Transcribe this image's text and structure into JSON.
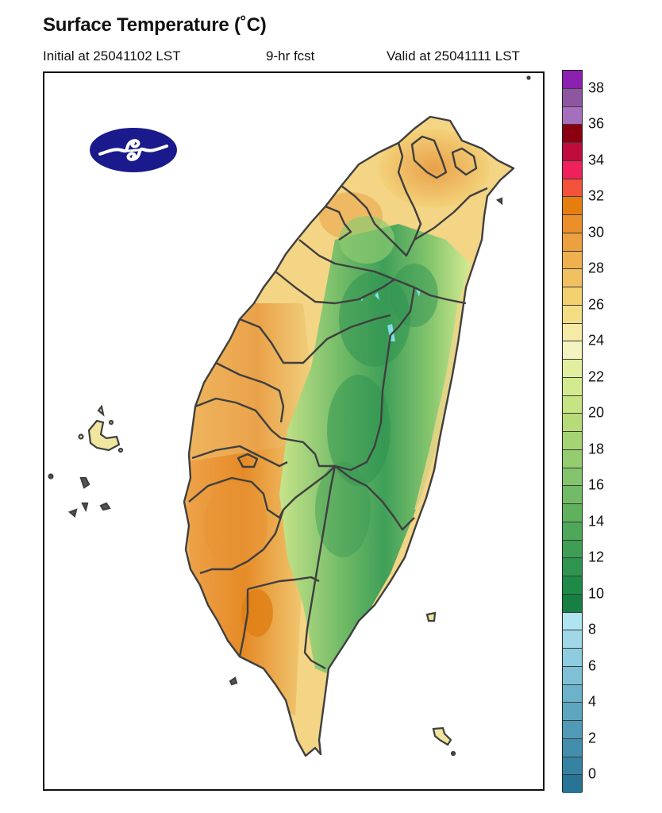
{
  "header": {
    "title": "Surface Temperature (˚C)",
    "initial": "Initial at 25041102 LST",
    "forecast": "9-hr fcst",
    "valid": "Valid at 25041111 LST"
  },
  "logo": {
    "icon": "cwa-logo-icon",
    "fill": "#1a1a8c"
  },
  "colorbar": {
    "unit": "˚C",
    "labels": [
      "38",
      "36",
      "34",
      "32",
      "30",
      "28",
      "26",
      "24",
      "22",
      "20",
      "18",
      "16",
      "14",
      "12",
      "10",
      "8",
      "6",
      "4",
      "2",
      "0"
    ],
    "boxes_top_to_bottom": [
      "#8a1fb0",
      "#8e55a0",
      "#a66fbe",
      "#8b0010",
      "#c00c3c",
      "#f0205a",
      "#f2533a",
      "#e67e0e",
      "#ea8f2a",
      "#eca040",
      "#efb050",
      "#f1c060",
      "#f3d070",
      "#f3de84",
      "#f6eba6",
      "#f3f4c0",
      "#e1ef9e",
      "#d3ea8e",
      "#c6e482",
      "#b6dc78",
      "#a6d474",
      "#94cc70",
      "#84c46c",
      "#72bb66",
      "#60b15e",
      "#4ea85a",
      "#3e9e54",
      "#2e944e",
      "#1e8a48",
      "#158042",
      "#b0e4f0",
      "#a0d8e8",
      "#8ecce0",
      "#7ec0d6",
      "#6cb2ca",
      "#5ea6c0",
      "#4f9ab6",
      "#428eac",
      "#3682a2",
      "#287496"
    ]
  },
  "chart_data": {
    "type": "heatmap",
    "title": "Surface Temperature (˚C)",
    "subtitle_left": "Initial at 25041102 LST",
    "subtitle_center": "9-hr fcst",
    "subtitle_right": "Valid at 25041111 LST",
    "region": "Taiwan",
    "colorbar_ticks": [
      0,
      2,
      4,
      6,
      8,
      10,
      12,
      14,
      16,
      18,
      20,
      22,
      24,
      26,
      28,
      30,
      32,
      34,
      36,
      38
    ],
    "colorbar_range": [
      -1,
      40
    ],
    "interval": 1,
    "observations": {
      "western_plains_southwest": "28-31",
      "pingtung_peak": "31",
      "taipei_basin": "28-30",
      "central_mountain_range": "12-20",
      "highest_peaks": "below 12",
      "east_coast": "22-26",
      "penghu_islands": "24-26"
    }
  }
}
